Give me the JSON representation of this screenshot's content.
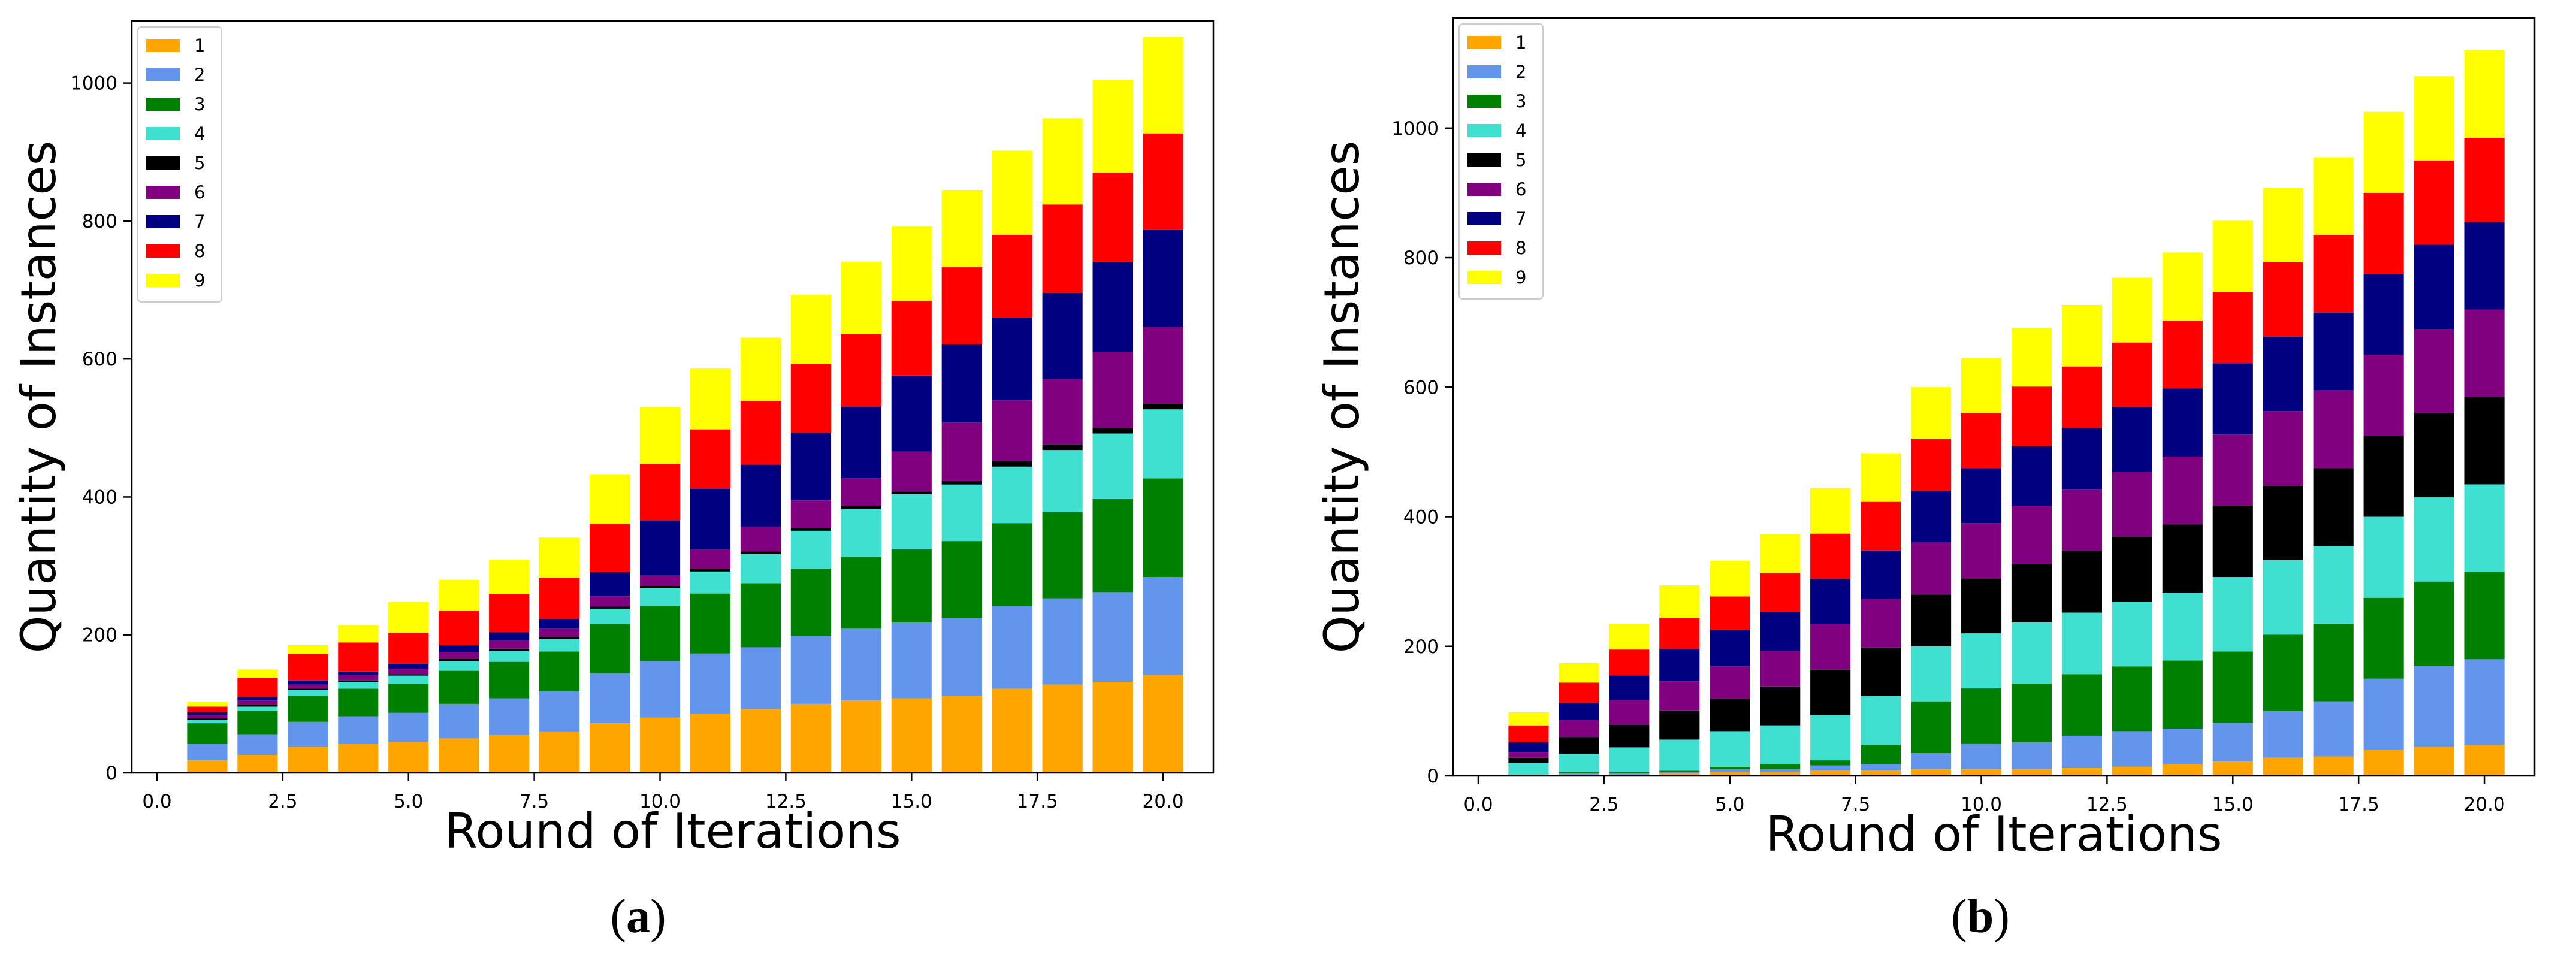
{
  "figure": {
    "captions": [
      "a",
      "b"
    ]
  },
  "chart_data": [
    {
      "id": "a",
      "type": "bar",
      "stacked": true,
      "title": "",
      "xlabel": "Round of Iterations",
      "ylabel": "Quantity of Instances",
      "xlim": [
        -0.5,
        21.0
      ],
      "ylim": [
        0,
        1090
      ],
      "xticks": [
        0.0,
        2.5,
        5.0,
        7.5,
        10.0,
        12.5,
        15.0,
        17.5,
        20.0
      ],
      "xtick_labels": [
        "0.0",
        "2.5",
        "5.0",
        "7.5",
        "10.0",
        "12.5",
        "15.0",
        "17.5",
        "20.0"
      ],
      "yticks": [
        0,
        200,
        400,
        600,
        800,
        1000
      ],
      "ytick_labels": [
        "0",
        "200",
        "400",
        "600",
        "800",
        "1000"
      ],
      "legend_position": "top-left",
      "categories": [
        1,
        2,
        3,
        4,
        5,
        6,
        7,
        8,
        9,
        10,
        11,
        12,
        13,
        14,
        15,
        16,
        17,
        18,
        19,
        20
      ],
      "series": [
        {
          "name": "1",
          "color": "#FFA500",
          "values": [
            18,
            26,
            38,
            42,
            45,
            50,
            55,
            60,
            72,
            80,
            86,
            92,
            100,
            105,
            108,
            112,
            122,
            128,
            132,
            142
          ]
        },
        {
          "name": "2",
          "color": "#6495ED",
          "values": [
            24,
            30,
            36,
            40,
            42,
            50,
            53,
            58,
            72,
            82,
            87,
            90,
            98,
            104,
            110,
            112,
            120,
            125,
            130,
            142
          ]
        },
        {
          "name": "3",
          "color": "#008000",
          "values": [
            30,
            34,
            38,
            40,
            42,
            48,
            53,
            58,
            72,
            80,
            87,
            93,
            98,
            104,
            106,
            112,
            120,
            125,
            135,
            143
          ]
        },
        {
          "name": "4",
          "color": "#40E0D0",
          "values": [
            5,
            6,
            8,
            10,
            12,
            14,
            16,
            18,
            22,
            26,
            32,
            42,
            55,
            70,
            80,
            82,
            82,
            90,
            95,
            100
          ]
        },
        {
          "name": "5",
          "color": "#000000",
          "values": [
            2,
            3,
            2,
            2,
            2,
            3,
            3,
            3,
            3,
            3,
            4,
            4,
            4,
            4,
            4,
            5,
            8,
            8,
            8,
            8
          ]
        },
        {
          "name": "6",
          "color": "#800080",
          "values": [
            5,
            6,
            6,
            8,
            8,
            10,
            12,
            12,
            15,
            15,
            28,
            36,
            40,
            40,
            58,
            85,
            88,
            95,
            110,
            112
          ]
        },
        {
          "name": "7",
          "color": "#000080",
          "values": [
            4,
            5,
            6,
            5,
            7,
            10,
            12,
            14,
            35,
            80,
            88,
            90,
            98,
            104,
            110,
            113,
            120,
            125,
            130,
            140
          ]
        },
        {
          "name": "8",
          "color": "#FF0000",
          "values": [
            8,
            28,
            38,
            42,
            45,
            50,
            55,
            60,
            70,
            82,
            86,
            92,
            100,
            105,
            108,
            112,
            120,
            128,
            130,
            140
          ]
        },
        {
          "name": "9",
          "color": "#FFFF00",
          "values": [
            7,
            12,
            13,
            25,
            45,
            45,
            50,
            58,
            72,
            82,
            88,
            92,
            100,
            105,
            108,
            112,
            122,
            125,
            135,
            140
          ]
        }
      ]
    },
    {
      "id": "b",
      "type": "bar",
      "stacked": true,
      "title": "",
      "xlabel": "Round of Iterations",
      "ylabel": "Quantity of Instances",
      "xlim": [
        -0.5,
        21.0
      ],
      "ylim": [
        0,
        1170
      ],
      "xticks": [
        0.0,
        2.5,
        5.0,
        7.5,
        10.0,
        12.5,
        15.0,
        17.5,
        20.0
      ],
      "xtick_labels": [
        "0.0",
        "2.5",
        "5.0",
        "7.5",
        "10.0",
        "12.5",
        "15.0",
        "17.5",
        "20.0"
      ],
      "yticks": [
        0,
        200,
        400,
        600,
        800,
        1000
      ],
      "ytick_labels": [
        "0",
        "200",
        "400",
        "600",
        "800",
        "1000"
      ],
      "legend_position": "top-left",
      "categories": [
        1,
        2,
        3,
        4,
        5,
        6,
        7,
        8,
        9,
        10,
        11,
        12,
        13,
        14,
        15,
        16,
        17,
        18,
        19,
        20
      ],
      "series": [
        {
          "name": "1",
          "color": "#FFA500",
          "values": [
            0,
            2,
            2,
            4,
            6,
            6,
            8,
            8,
            10,
            10,
            10,
            12,
            14,
            18,
            22,
            28,
            30,
            40,
            45,
            48
          ]
        },
        {
          "name": "2",
          "color": "#6495ED",
          "values": [
            1,
            2,
            2,
            2,
            4,
            4,
            8,
            10,
            25,
            40,
            42,
            50,
            55,
            55,
            60,
            72,
            85,
            110,
            125,
            132
          ]
        },
        {
          "name": "3",
          "color": "#008000",
          "values": [
            1,
            2,
            2,
            2,
            4,
            8,
            8,
            30,
            80,
            85,
            90,
            95,
            100,
            105,
            110,
            118,
            120,
            125,
            130,
            135
          ]
        },
        {
          "name": "4",
          "color": "#40E0D0",
          "values": [
            18,
            28,
            38,
            48,
            55,
            60,
            70,
            75,
            85,
            85,
            95,
            95,
            100,
            105,
            115,
            115,
            120,
            125,
            130,
            135
          ]
        },
        {
          "name": "5",
          "color": "#000000",
          "values": [
            8,
            26,
            35,
            45,
            50,
            60,
            70,
            75,
            80,
            85,
            90,
            95,
            100,
            105,
            110,
            115,
            120,
            125,
            130,
            135
          ]
        },
        {
          "name": "6",
          "color": "#800080",
          "values": [
            8,
            26,
            38,
            45,
            50,
            55,
            70,
            75,
            80,
            85,
            90,
            95,
            100,
            105,
            110,
            115,
            120,
            125,
            130,
            135
          ]
        },
        {
          "name": "7",
          "color": "#000080",
          "values": [
            16,
            26,
            38,
            50,
            56,
            60,
            70,
            75,
            80,
            85,
            92,
            95,
            100,
            105,
            110,
            115,
            120,
            125,
            130,
            135
          ]
        },
        {
          "name": "8",
          "color": "#FF0000",
          "values": [
            26,
            32,
            40,
            48,
            52,
            60,
            70,
            75,
            80,
            85,
            92,
            95,
            100,
            105,
            110,
            115,
            120,
            125,
            130,
            130
          ]
        },
        {
          "name": "9",
          "color": "#FFFF00",
          "values": [
            20,
            30,
            40,
            50,
            55,
            60,
            70,
            75,
            80,
            85,
            90,
            95,
            100,
            105,
            110,
            115,
            120,
            125,
            130,
            135
          ]
        }
      ]
    }
  ]
}
